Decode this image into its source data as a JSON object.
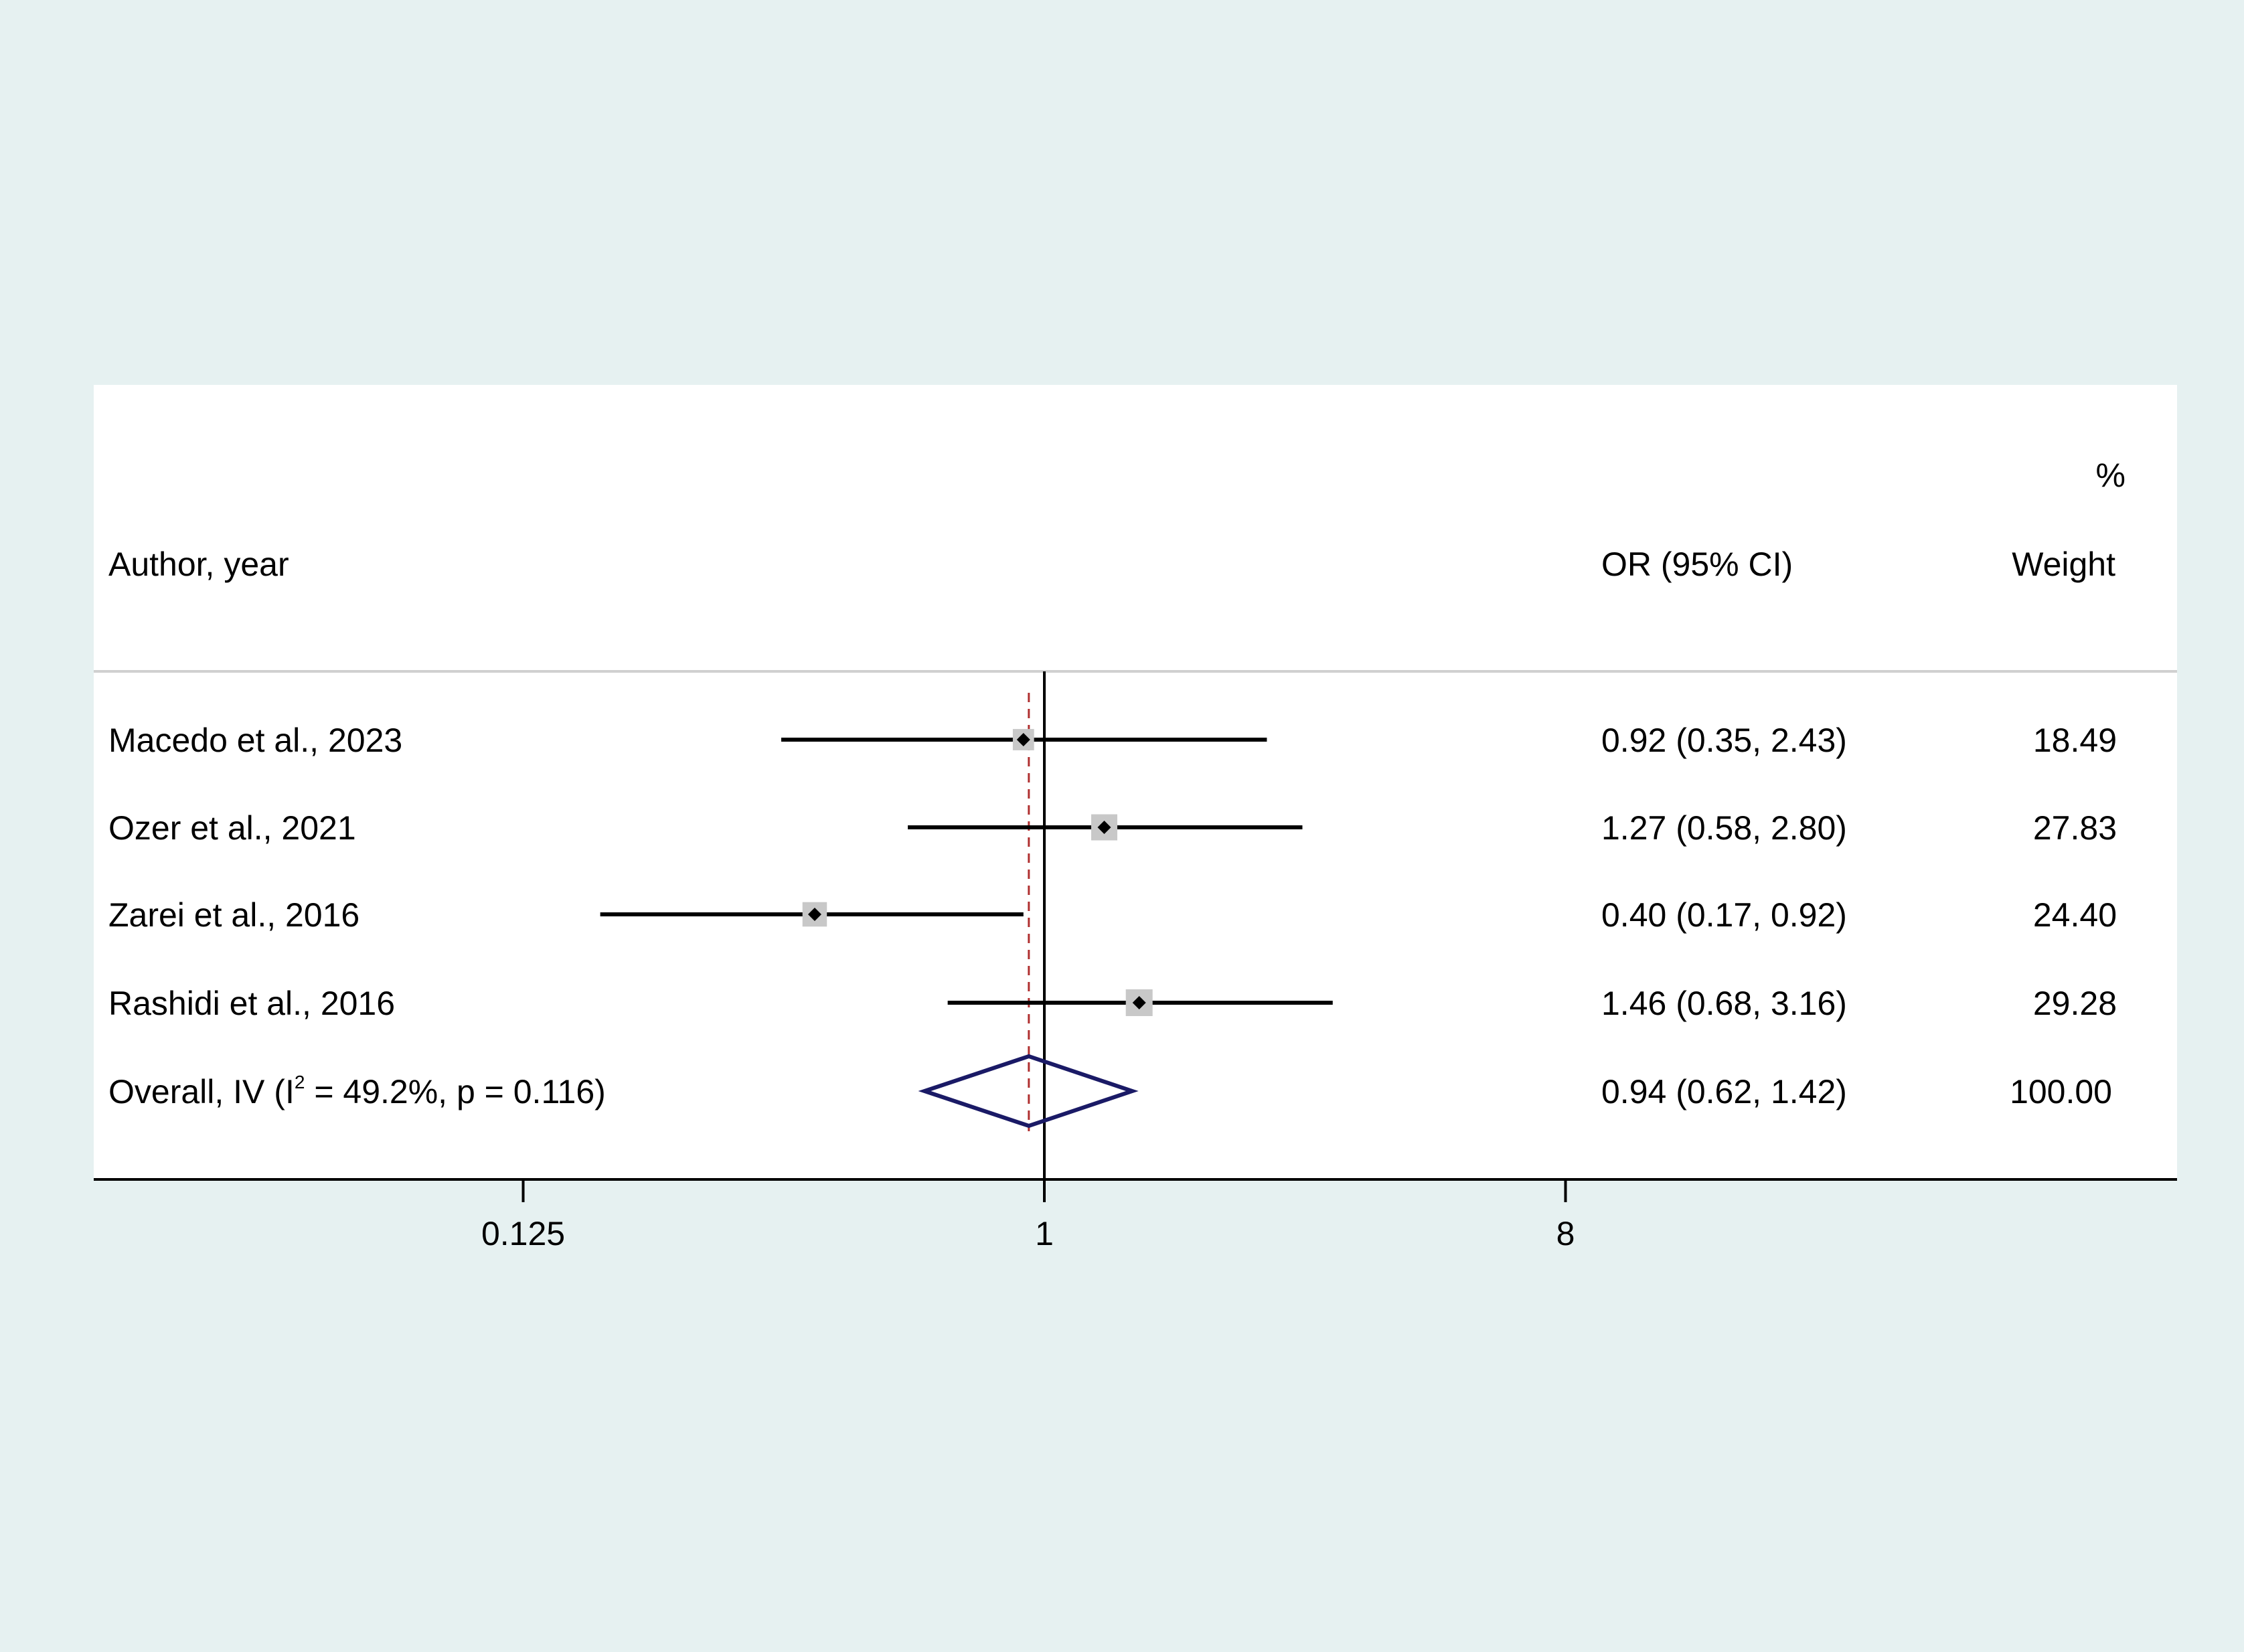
{
  "colors": {
    "outer_background": "#e6f1f1",
    "plot_background": "#ffffff",
    "ci_line": "#000000",
    "weight_box": "#c8c8c8",
    "pooled_diamond": "#1a1a66",
    "overall_reference": "#b03030",
    "null_line": "#000000",
    "header_rule": "#d0d0d0"
  },
  "header": {
    "col_study": "Author, year",
    "col_effect": "OR (95% CI)",
    "col_weight_top": "%",
    "col_weight_bottom": "Weight"
  },
  "chart_data": {
    "type": "forest",
    "x_scale": "log",
    "x_ticks": [
      0.125,
      1,
      8
    ],
    "x_tick_labels": [
      "0.125",
      "1",
      "8"
    ],
    "xlim": [
      0.0276,
      26.2
    ],
    "null_value": 1,
    "studies": [
      {
        "label": "Macedo et al., 2023",
        "or": 0.92,
        "lower": 0.35,
        "upper": 2.43,
        "weight": 18.49,
        "or_text": "0.92 (0.35, 2.43)",
        "weight_text": "18.49"
      },
      {
        "label": "Ozer et al., 2021",
        "or": 1.27,
        "lower": 0.58,
        "upper": 2.8,
        "weight": 27.83,
        "or_text": "1.27 (0.58, 2.80)",
        "weight_text": "27.83"
      },
      {
        "label": "Zarei et al., 2016",
        "or": 0.4,
        "lower": 0.17,
        "upper": 0.92,
        "weight": 24.4,
        "or_text": "0.40 (0.17, 0.92)",
        "weight_text": "24.40"
      },
      {
        "label": "Rashidi et  al., 2016",
        "or": 1.46,
        "lower": 0.68,
        "upper": 3.16,
        "weight": 29.28,
        "or_text": "1.46 (0.68, 3.16)",
        "weight_text": "29.28"
      }
    ],
    "overall": {
      "label_prefix": "Overall, IV (I",
      "label_sup": "2",
      "label_suffix": " = 49.2%, p = 0.116)",
      "or": 0.94,
      "lower": 0.62,
      "upper": 1.42,
      "or_text": "0.94 (0.62, 1.42)",
      "weight_text": "100.00"
    }
  }
}
